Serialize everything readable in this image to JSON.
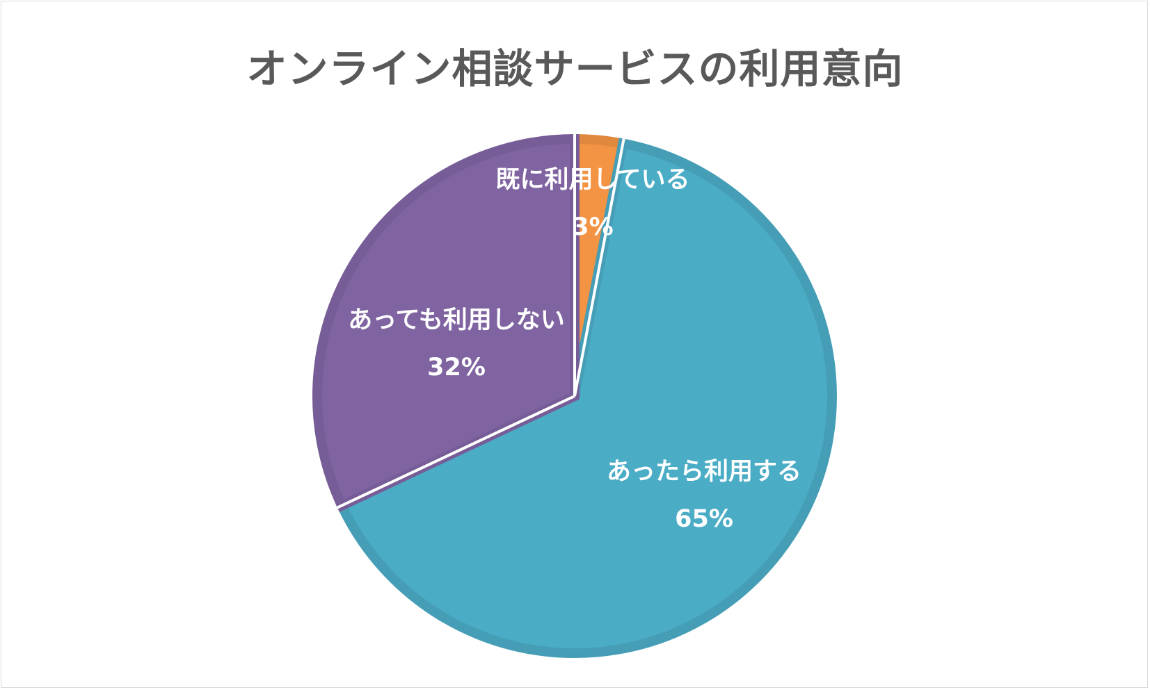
{
  "chart_data": {
    "type": "pie",
    "title": "オンライン相談サービスの利用意向",
    "slices": [
      {
        "label": "既に利用している",
        "value": 3,
        "percent_label": "3%",
        "color": "#F39444",
        "edge": "#E0883E"
      },
      {
        "label": "あったら利用する",
        "value": 65,
        "percent_label": "65%",
        "color": "#4BACC6",
        "edge": "#459EB6"
      },
      {
        "label": "あっても利用しない",
        "value": 32,
        "percent_label": "32%",
        "color": "#8064A2",
        "edge": "#775D97"
      }
    ],
    "legend": "none",
    "data_labels": "inside"
  }
}
